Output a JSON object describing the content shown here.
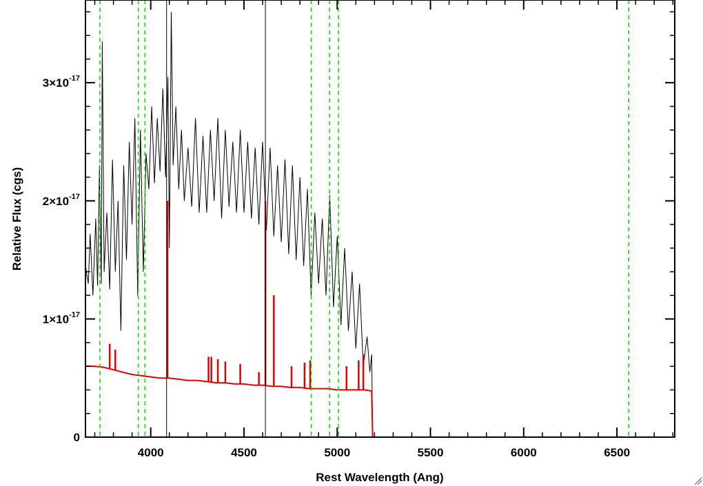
{
  "chart_data": {
    "type": "line",
    "title": "",
    "xlabel": "Rest Wavelength (Ang)",
    "ylabel": "Relative Flux (cgs)",
    "xlim": [
      3650,
      6810
    ],
    "ylim": [
      0,
      3.7e-17
    ],
    "x_ticks": [
      4000,
      4500,
      5000,
      5500,
      6000,
      6500
    ],
    "x_tick_labels": [
      "4000",
      "4500",
      "5000",
      "5500",
      "6000",
      "6500"
    ],
    "y_ticks": [
      {
        "value": 0,
        "mantissa": "0",
        "exponent": ""
      },
      {
        "value": 1e-17,
        "mantissa": "1×10",
        "exponent": "-17"
      },
      {
        "value": 2e-17,
        "mantissa": "2×10",
        "exponent": "-17"
      },
      {
        "value": 3e-17,
        "mantissa": "3×10",
        "exponent": "-17"
      }
    ],
    "grid": false,
    "series": [
      {
        "role": "observed-spectrum",
        "color": "#000000",
        "points": [
          [
            3650,
            1.45e-17
          ],
          [
            3665,
            1.3e-17
          ],
          [
            3675,
            1.72e-17
          ],
          [
            3690,
            1.2e-17
          ],
          [
            3705,
            1.85e-17
          ],
          [
            3715,
            1.28e-17
          ],
          [
            3725,
            2.3e-17
          ],
          [
            3735,
            1.3e-17
          ],
          [
            3740,
            3.35e-17
          ],
          [
            3750,
            1.4e-17
          ],
          [
            3765,
            1.9e-17
          ],
          [
            3780,
            1.25e-17
          ],
          [
            3795,
            2.35e-17
          ],
          [
            3810,
            1.4e-17
          ],
          [
            3825,
            2e-17
          ],
          [
            3840,
            9e-18
          ],
          [
            3855,
            2.3e-17
          ],
          [
            3870,
            1.5e-17
          ],
          [
            3885,
            2.5e-17
          ],
          [
            3900,
            1.8e-17
          ],
          [
            3915,
            2.7e-17
          ],
          [
            3930,
            1.2e-17
          ],
          [
            3945,
            2.6e-17
          ],
          [
            3960,
            1.4e-17
          ],
          [
            3975,
            2.4e-17
          ],
          [
            3990,
            2.1e-17
          ],
          [
            4005,
            2.8e-17
          ],
          [
            4020,
            2.15e-17
          ],
          [
            4035,
            2.7e-17
          ],
          [
            4050,
            2.25e-17
          ],
          [
            4065,
            2.95e-17
          ],
          [
            4080,
            2.2e-17
          ],
          [
            4092,
            3.05e-17
          ],
          [
            4100,
            1.6e-17
          ],
          [
            4110,
            3.6e-17
          ],
          [
            4120,
            2.3e-17
          ],
          [
            4135,
            2.8e-17
          ],
          [
            4150,
            2.1e-17
          ],
          [
            4165,
            2.6e-17
          ],
          [
            4180,
            2e-17
          ],
          [
            4200,
            2.45e-17
          ],
          [
            4220,
            1.95e-17
          ],
          [
            4240,
            2.7e-17
          ],
          [
            4260,
            1.9e-17
          ],
          [
            4280,
            2.55e-17
          ],
          [
            4300,
            1.9e-17
          ],
          [
            4320,
            2.6e-17
          ],
          [
            4340,
            2e-17
          ],
          [
            4360,
            2.7e-17
          ],
          [
            4380,
            1.85e-17
          ],
          [
            4400,
            2.6e-17
          ],
          [
            4420,
            1.95e-17
          ],
          [
            4440,
            2.5e-17
          ],
          [
            4460,
            1.9e-17
          ],
          [
            4480,
            2.6e-17
          ],
          [
            4500,
            1.9e-17
          ],
          [
            4520,
            2.5e-17
          ],
          [
            4540,
            1.85e-17
          ],
          [
            4560,
            2.45e-17
          ],
          [
            4580,
            1.8e-17
          ],
          [
            4600,
            2.5e-17
          ],
          [
            4620,
            1.75e-17
          ],
          [
            4640,
            2.45e-17
          ],
          [
            4660,
            1.7e-17
          ],
          [
            4680,
            2.3e-17
          ],
          [
            4700,
            1.65e-17
          ],
          [
            4720,
            2.35e-17
          ],
          [
            4740,
            1.55e-17
          ],
          [
            4760,
            2.3e-17
          ],
          [
            4780,
            1.5e-17
          ],
          [
            4800,
            2.2e-17
          ],
          [
            4820,
            1.45e-17
          ],
          [
            4840,
            2.1e-17
          ],
          [
            4860,
            1.2e-17
          ],
          [
            4880,
            1.9e-17
          ],
          [
            4900,
            1.3e-17
          ],
          [
            4920,
            1.85e-17
          ],
          [
            4940,
            1.2e-17
          ],
          [
            4960,
            2.05e-17
          ],
          [
            4980,
            1.1e-17
          ],
          [
            5000,
            1.7e-17
          ],
          [
            5020,
            9.5e-18
          ],
          [
            5040,
            1.6e-17
          ],
          [
            5060,
            9e-18
          ],
          [
            5080,
            1.4e-17
          ],
          [
            5100,
            7.5e-18
          ],
          [
            5120,
            1.3e-17
          ],
          [
            5140,
            6e-18
          ],
          [
            5160,
            8.5e-18
          ],
          [
            5175,
            5.5e-18
          ],
          [
            5185,
            7e-18
          ],
          [
            5190,
            0.0
          ]
        ]
      },
      {
        "role": "model-continuum",
        "color": "#e00000",
        "points": [
          [
            3650,
            6e-18
          ],
          [
            3700,
            6e-18
          ],
          [
            3750,
            5.9e-18
          ],
          [
            3800,
            5.7e-18
          ],
          [
            3850,
            5.5e-18
          ],
          [
            3900,
            5.3e-18
          ],
          [
            3950,
            5.2e-18
          ],
          [
            4000,
            5.1e-18
          ],
          [
            4050,
            5e-18
          ],
          [
            4100,
            5e-18
          ],
          [
            4150,
            4.9e-18
          ],
          [
            4200,
            4.8e-18
          ],
          [
            4250,
            4.8e-18
          ],
          [
            4300,
            4.7e-18
          ],
          [
            4350,
            4.6e-18
          ],
          [
            4400,
            4.6e-18
          ],
          [
            4450,
            4.5e-18
          ],
          [
            4500,
            4.5e-18
          ],
          [
            4550,
            4.4e-18
          ],
          [
            4600,
            4.4e-18
          ],
          [
            4650,
            4.3e-18
          ],
          [
            4700,
            4.3e-18
          ],
          [
            4750,
            4.2e-18
          ],
          [
            4800,
            4.2e-18
          ],
          [
            4850,
            4.1e-18
          ],
          [
            4900,
            4.1e-18
          ],
          [
            4950,
            4.1e-18
          ],
          [
            5000,
            4e-18
          ],
          [
            5050,
            4e-18
          ],
          [
            5100,
            4e-18
          ],
          [
            5150,
            4e-18
          ],
          [
            5185,
            3.9e-18
          ],
          [
            5190,
            0.0
          ],
          [
            6810,
            0.0
          ]
        ],
        "emission_lines": [
          [
            3780,
            7.9e-18
          ],
          [
            3810,
            7.4e-18
          ],
          [
            4090,
            2e-17
          ],
          [
            4310,
            6.8e-18
          ],
          [
            4325,
            6.8e-18
          ],
          [
            4360,
            6.6e-18
          ],
          [
            4400,
            6.4e-18
          ],
          [
            4480,
            6.2e-18
          ],
          [
            4580,
            5.5e-18
          ],
          [
            4615,
            2e-17
          ],
          [
            4660,
            1.2e-17
          ],
          [
            4755,
            6e-18
          ],
          [
            4825,
            6.3e-18
          ],
          [
            4855,
            6.5e-18
          ],
          [
            5050,
            6e-18
          ],
          [
            5115,
            6.5e-18
          ],
          [
            5140,
            7e-18
          ]
        ]
      }
    ],
    "vertical_markers_solid": [
      4085,
      4615
    ],
    "vertical_markers_dashed": [
      3727,
      3933,
      3969,
      4861,
      4959,
      5007,
      6563
    ]
  }
}
